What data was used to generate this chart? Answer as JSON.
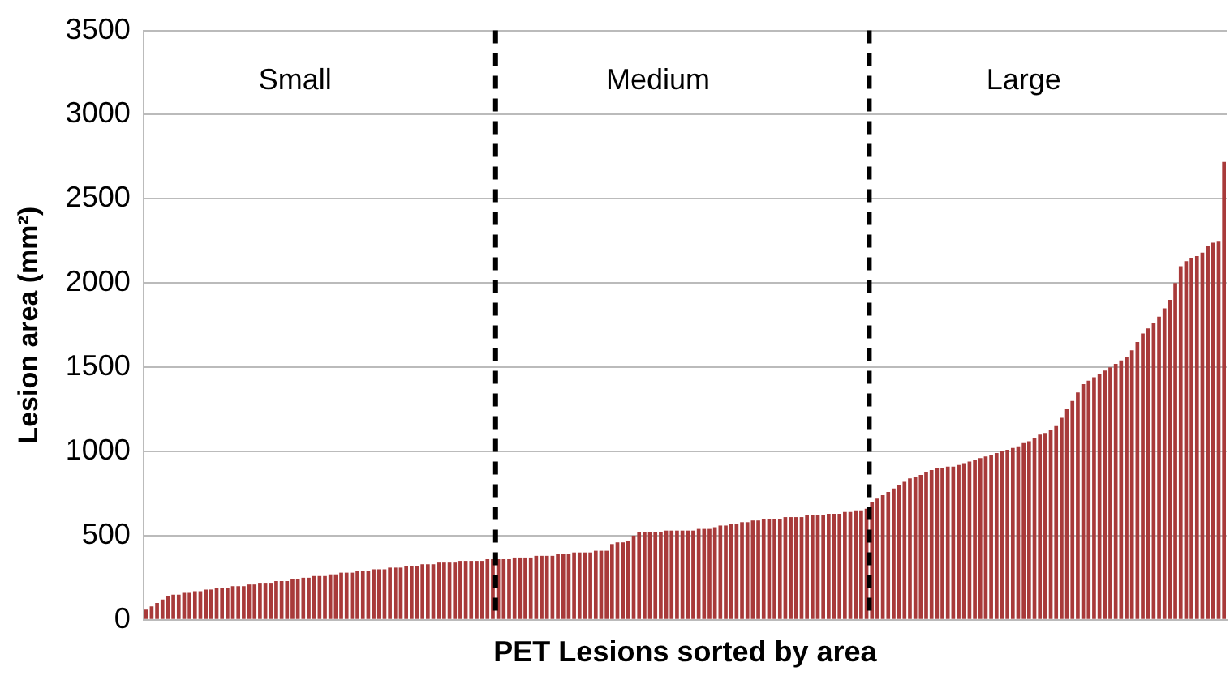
{
  "chart_data": {
    "type": "bar",
    "xlabel": "PET Lesions sorted by area",
    "ylabel": "Lesion area (mm²)",
    "categories": [
      null,
      null,
      null,
      null,
      null,
      null,
      null,
      null,
      null,
      null,
      null,
      null,
      null,
      null,
      null,
      null,
      null,
      null,
      null,
      null,
      null,
      null,
      null,
      null,
      null,
      null,
      null,
      null,
      null,
      null,
      null,
      null,
      null,
      null,
      null,
      null,
      null,
      null,
      null,
      null,
      null,
      null,
      null,
      null,
      null,
      null,
      null,
      null,
      null,
      null,
      null,
      null,
      null,
      null,
      null,
      null,
      null,
      null,
      null,
      null,
      null,
      null,
      null,
      null,
      null,
      null,
      null,
      null,
      null,
      null,
      null,
      null,
      null,
      null,
      null,
      null,
      null,
      null,
      null,
      null,
      null,
      null,
      null,
      null,
      null,
      null,
      null,
      null,
      null,
      null,
      null,
      null,
      null,
      null,
      null,
      null,
      null,
      null,
      null,
      null,
      null,
      null,
      null,
      null,
      null,
      null,
      null,
      null,
      null,
      null,
      null,
      null,
      null,
      null,
      null,
      null,
      null,
      null,
      null,
      null,
      null,
      null,
      null,
      null,
      null,
      null,
      null,
      null,
      null,
      null,
      null,
      null,
      null,
      null,
      null,
      null,
      null,
      null,
      null,
      null,
      null,
      null,
      null,
      null,
      null,
      null,
      null,
      null,
      null,
      null,
      null,
      null,
      null,
      null,
      null,
      null,
      null,
      null,
      null,
      null,
      null,
      null,
      null,
      null,
      null,
      null,
      null,
      null,
      null,
      null,
      null,
      null,
      null,
      null,
      null,
      null,
      null,
      null,
      null,
      null,
      null,
      null,
      null,
      null,
      null,
      null,
      null,
      null,
      null,
      null,
      null,
      null,
      null,
      null,
      null,
      null,
      null,
      null,
      null,
      null
    ],
    "values": [
      60,
      80,
      100,
      120,
      140,
      150,
      150,
      160,
      160,
      170,
      170,
      180,
      180,
      190,
      190,
      190,
      200,
      200,
      200,
      210,
      210,
      220,
      220,
      220,
      230,
      230,
      230,
      240,
      240,
      250,
      250,
      260,
      260,
      260,
      270,
      270,
      280,
      280,
      280,
      290,
      290,
      290,
      300,
      300,
      300,
      310,
      310,
      310,
      320,
      320,
      320,
      330,
      330,
      330,
      340,
      340,
      340,
      340,
      350,
      350,
      350,
      350,
      350,
      360,
      360,
      360,
      360,
      360,
      370,
      370,
      370,
      370,
      380,
      380,
      380,
      380,
      390,
      390,
      390,
      400,
      400,
      400,
      400,
      410,
      410,
      410,
      450,
      460,
      460,
      470,
      500,
      520,
      520,
      520,
      520,
      520,
      530,
      530,
      530,
      530,
      530,
      530,
      540,
      540,
      540,
      550,
      560,
      560,
      570,
      570,
      580,
      580,
      590,
      590,
      600,
      600,
      600,
      600,
      610,
      610,
      610,
      610,
      620,
      620,
      620,
      620,
      630,
      630,
      630,
      640,
      640,
      650,
      650,
      660,
      700,
      720,
      740,
      760,
      780,
      800,
      820,
      840,
      850,
      860,
      880,
      890,
      900,
      900,
      910,
      910,
      920,
      930,
      940,
      950,
      960,
      970,
      980,
      990,
      1000,
      1010,
      1020,
      1030,
      1050,
      1060,
      1080,
      1100,
      1110,
      1130,
      1150,
      1200,
      1250,
      1300,
      1350,
      1400,
      1420,
      1440,
      1460,
      1480,
      1500,
      1520,
      1540,
      1560,
      1600,
      1650,
      1700,
      1730,
      1760,
      1800,
      1850,
      1900,
      2000,
      2100,
      2130,
      2150,
      2160,
      2180,
      2220,
      2240,
      2250,
      2720
    ],
    "color": "#a83a3a",
    "ylim": [
      0,
      3500
    ],
    "yticks": [
      0,
      500,
      1000,
      1500,
      2000,
      2500,
      3000,
      3500
    ],
    "grid": "y",
    "tick_labels": "y",
    "annotations": [
      "Small",
      "Medium",
      "Large"
    ]
  }
}
